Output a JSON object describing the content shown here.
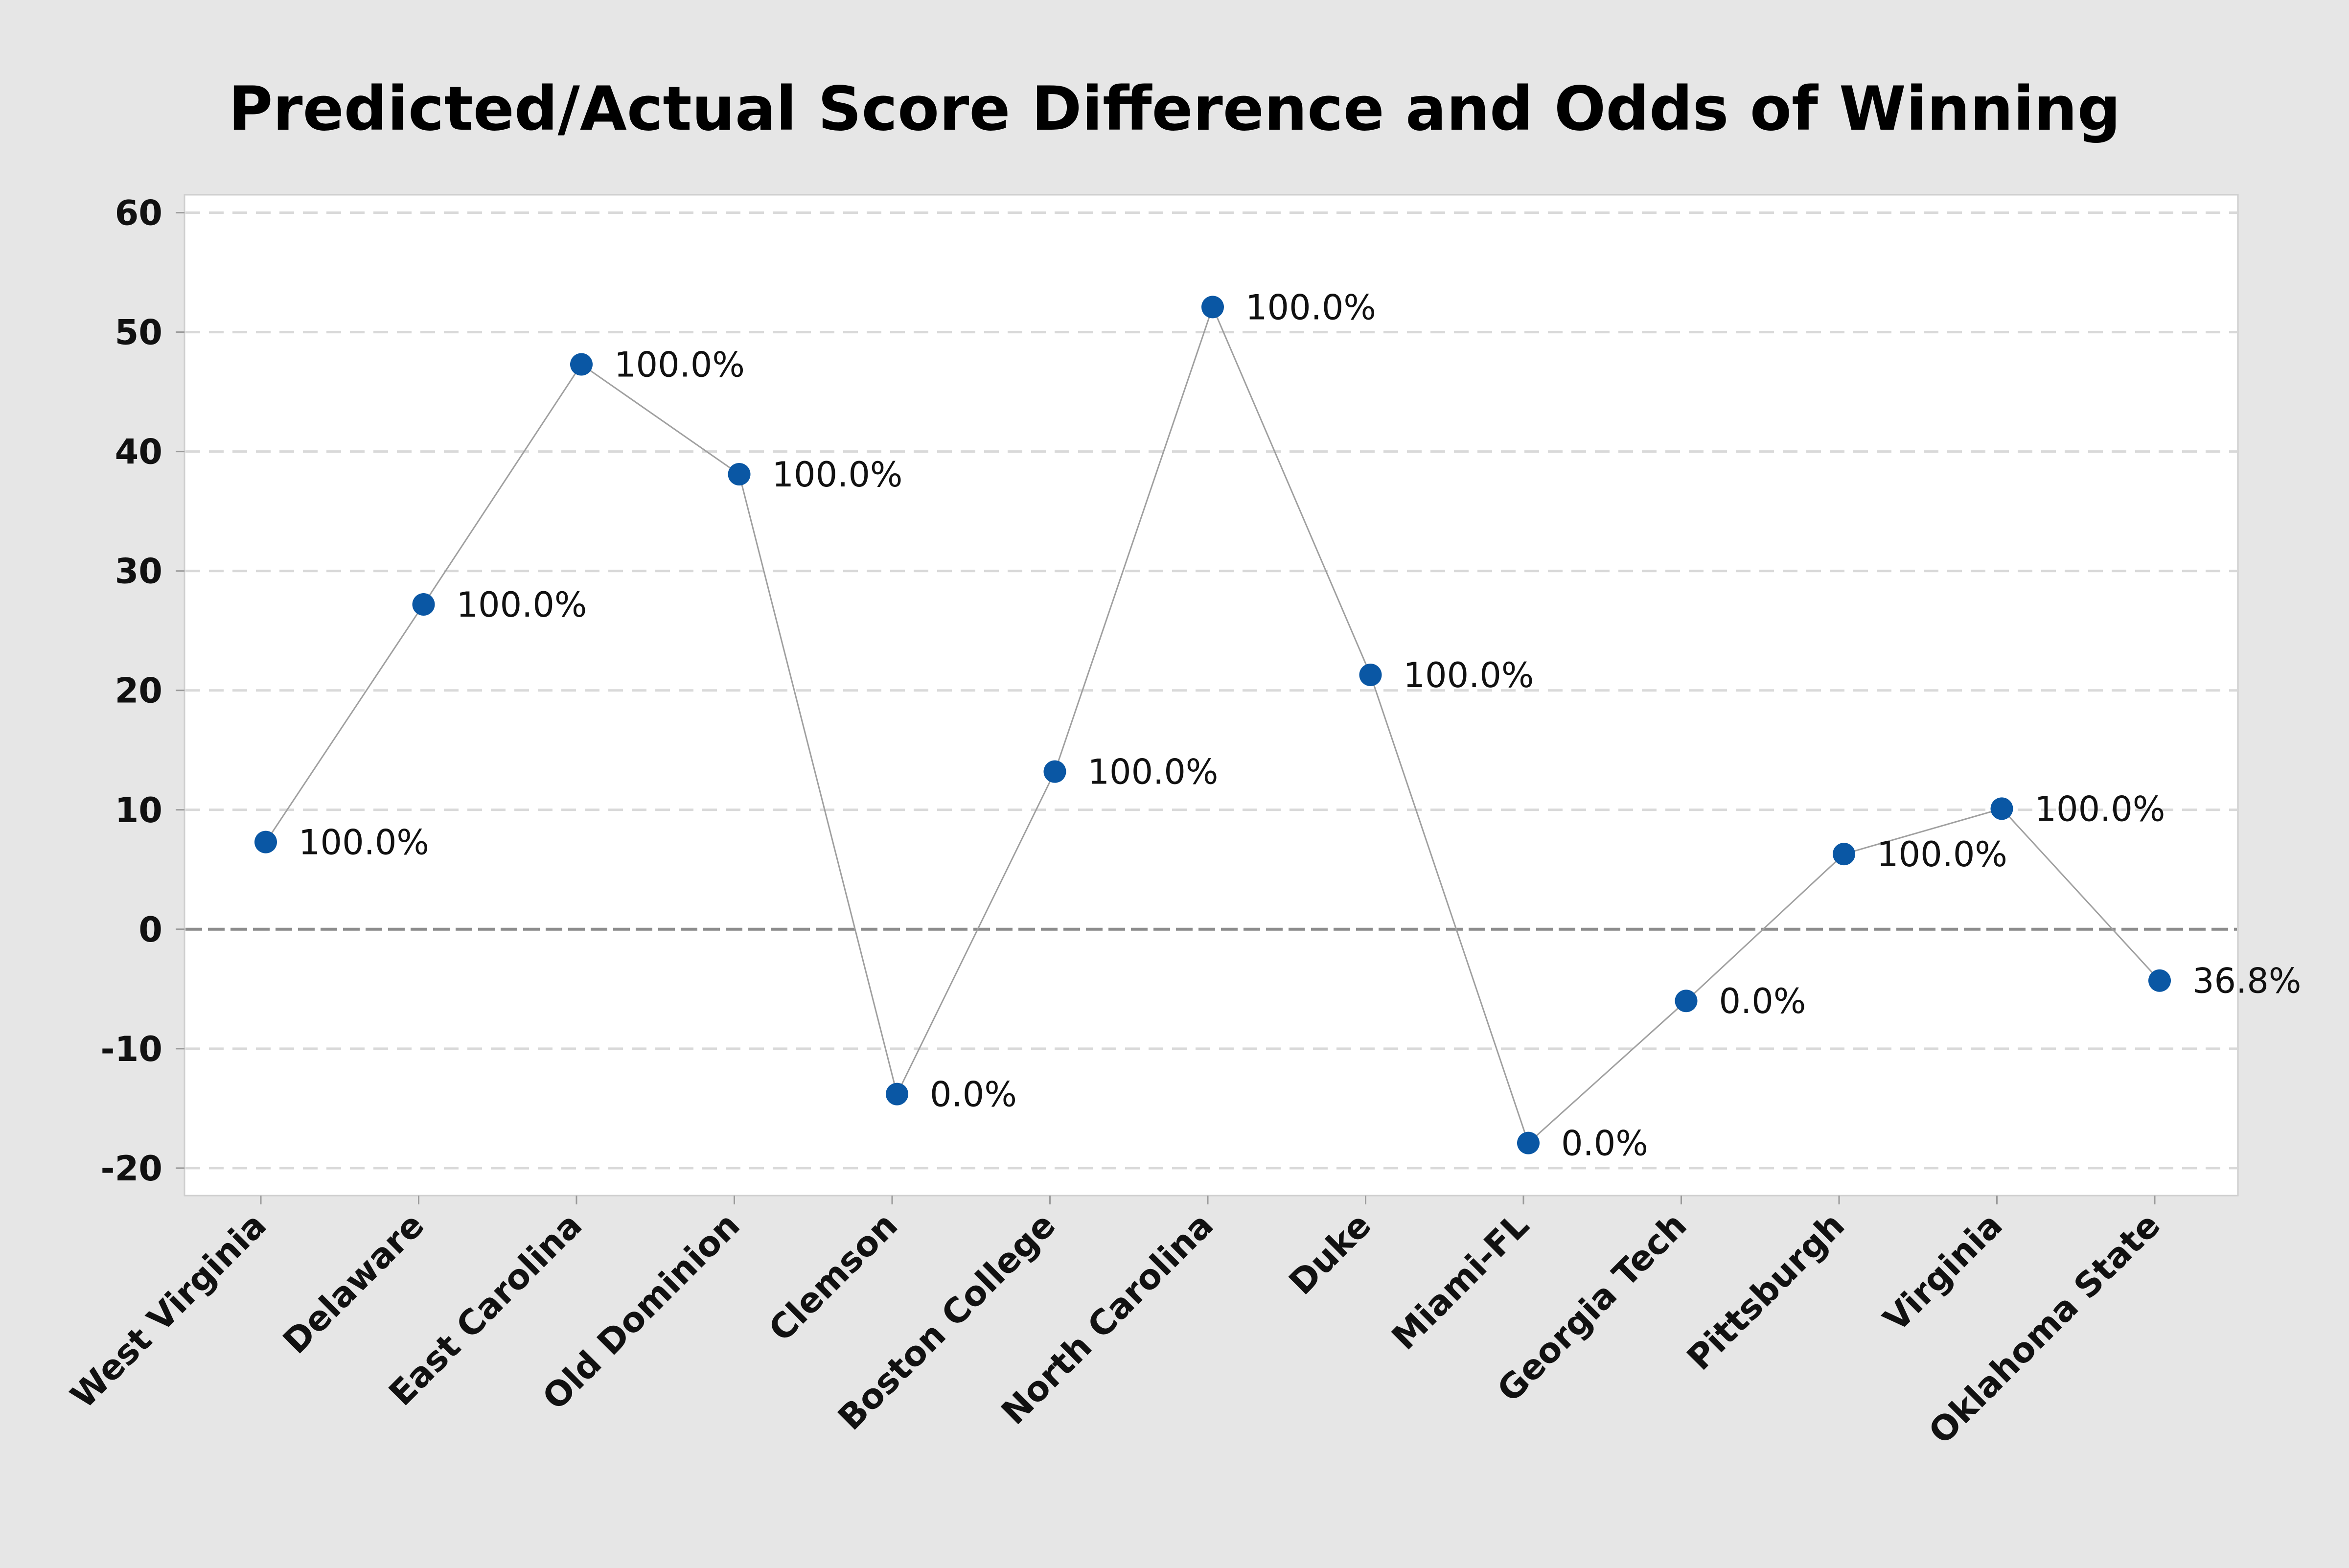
{
  "chart_data": {
    "type": "line",
    "title": "Predicted/Actual Score Difference and Odds of Winning",
    "xlabel": "",
    "ylabel": "",
    "categories": [
      "West Virginia",
      "Delaware",
      "East Carolina",
      "Old Dominion",
      "Clemson",
      "Boston College",
      "North Carolina",
      "Duke",
      "Miami-FL",
      "Georgia Tech",
      "Pittsburgh",
      "Virginia",
      "Oklahoma State"
    ],
    "series": [
      {
        "values": [
          7.3,
          27.2,
          47.3,
          38.1,
          -13.8,
          13.2,
          52.1,
          21.3,
          -17.9,
          -6.0,
          6.3,
          10.1,
          -4.3
        ],
        "labels": [
          "100.0%",
          "100.0%",
          "100.0%",
          "100.0%",
          "0.0%",
          "100.0%",
          "100.0%",
          "100.0%",
          "0.0%",
          "0.0%",
          "100.0%",
          "100.0%",
          "36.8%"
        ]
      }
    ],
    "ylim": [
      -22.3,
      61.5
    ],
    "yticks": [
      -20,
      -10,
      0,
      10,
      20,
      30,
      40,
      50,
      60
    ],
    "ytick_labels": [
      "-20",
      "-10",
      "0",
      "10",
      "20",
      "30",
      "40",
      "50",
      "60"
    ],
    "grid": true,
    "reference_line_y": 0,
    "colors": {
      "marker": "#0a57a4",
      "line": "#a0a0a0",
      "grid": "#d9d9d9",
      "zero_line": "#8c8c8c",
      "background": "#e6e6e6",
      "plot_background": "#ffffff"
    }
  }
}
